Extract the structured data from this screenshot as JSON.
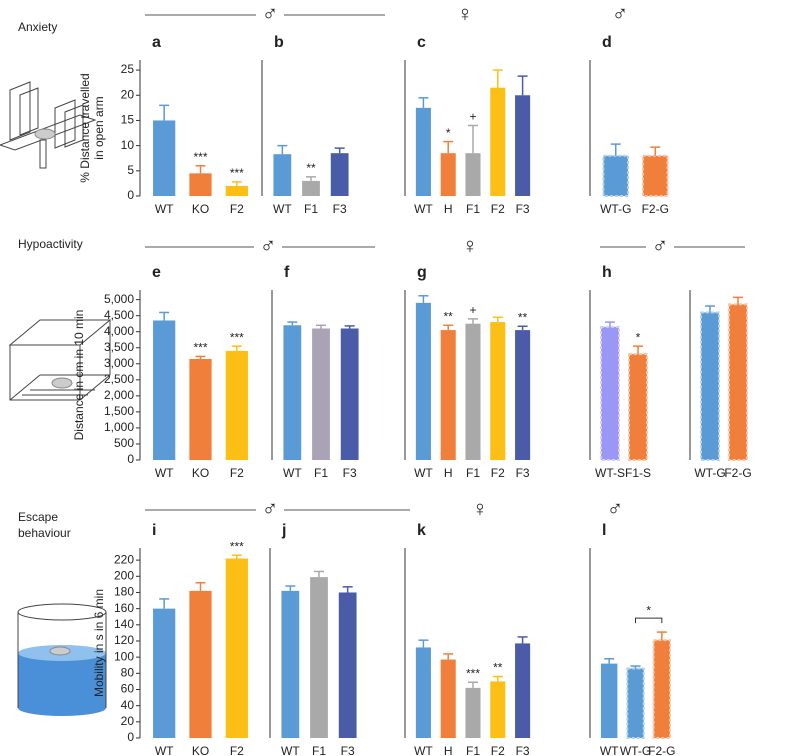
{
  "sections": [
    {
      "label": [
        "Anxiety"
      ],
      "symbols": [
        "♂",
        "♀",
        "♂"
      ]
    },
    {
      "label": [
        "Hypoactivity"
      ],
      "symbols": [
        "♂",
        "♀",
        "♂"
      ]
    },
    {
      "label": [
        "Escape",
        "behaviour"
      ],
      "symbols": [
        "♂",
        "♀",
        "♂"
      ]
    }
  ],
  "chart_data": [
    {
      "type": "bar",
      "title": "a",
      "ylabel": [
        "% Distance travelled",
        "in open arm"
      ],
      "categories": [
        "WT",
        "KO",
        "F2"
      ],
      "values": [
        15,
        4.5,
        2
      ],
      "errors": [
        3,
        1.5,
        0.8
      ],
      "colors": [
        "#5b9bd5",
        "#f07f3c",
        "#fbbf16"
      ],
      "dashed": [
        false,
        false,
        false
      ],
      "annotations": [
        null,
        "***",
        "***"
      ],
      "ylim": [
        0,
        27
      ],
      "yticks": [
        0,
        5,
        10,
        15,
        20,
        25
      ]
    },
    {
      "type": "bar",
      "title": "b",
      "categories": [
        "WT",
        "F1",
        "F3"
      ],
      "values": [
        8.3,
        3,
        8.5
      ],
      "errors": [
        1.7,
        0.8,
        1
      ],
      "colors": [
        "#5b9bd5",
        "#a9a9a9",
        "#4a5ba8"
      ],
      "dashed": [
        false,
        false,
        false
      ],
      "annotations": [
        null,
        "**",
        null
      ],
      "ylim": [
        0,
        27
      ]
    },
    {
      "type": "bar",
      "title": "c",
      "categories": [
        "WT",
        "H",
        "F1",
        "F2",
        "F3"
      ],
      "values": [
        17.5,
        8.5,
        8.5,
        21.5,
        20
      ],
      "errors": [
        2,
        2.3,
        5.5,
        3.5,
        3.8
      ],
      "colors": [
        "#5b9bd5",
        "#f07f3c",
        "#a9a9a9",
        "#fbbf16",
        "#4a5ba8"
      ],
      "dashed": [
        false,
        false,
        false,
        false,
        false
      ],
      "annotations": [
        null,
        "*",
        "+",
        null,
        null
      ],
      "ylim": [
        0,
        27
      ]
    },
    {
      "type": "bar",
      "title": "d",
      "categories": [
        "WT-G",
        "F2-G"
      ],
      "values": [
        8,
        8
      ],
      "errors": [
        2.3,
        1.7
      ],
      "colors": [
        "#5b9bd5",
        "#f07f3c"
      ],
      "dashed": [
        true,
        true
      ],
      "annotations": [
        null,
        null
      ],
      "ylim": [
        0,
        27
      ]
    },
    {
      "type": "bar",
      "title": "e",
      "ylabel": [
        "Distance in cm in 10 min"
      ],
      "categories": [
        "WT",
        "KO",
        "F2"
      ],
      "values": [
        4350,
        3150,
        3400
      ],
      "errors": [
        250,
        80,
        150
      ],
      "colors": [
        "#5b9bd5",
        "#f07f3c",
        "#fbbf16"
      ],
      "dashed": [
        false,
        false,
        false
      ],
      "annotations": [
        null,
        "***",
        "***"
      ],
      "ylim": [
        0,
        5300
      ],
      "yticks": [
        0,
        500,
        {
          "value": 1000,
          "label": "1,000"
        },
        {
          "value": 1500,
          "label": "1,500"
        },
        {
          "value": 2000,
          "label": "2,000"
        },
        {
          "value": 2500,
          "label": "2,500"
        },
        {
          "value": 3000,
          "label": "3,000"
        },
        {
          "value": 3500,
          "label": "3,500"
        },
        {
          "value": 4000,
          "label": "4,000"
        },
        {
          "value": 4500,
          "label": "4,500"
        },
        {
          "value": 5000,
          "label": "5,000"
        }
      ]
    },
    {
      "type": "bar",
      "title": "f",
      "categories": [
        "WT",
        "F1",
        "F3"
      ],
      "values": [
        4200,
        4100,
        4100
      ],
      "errors": [
        100,
        100,
        80
      ],
      "colors": [
        "#5b9bd5",
        "#aaa3b5",
        "#4a5ba8"
      ],
      "dashed": [
        false,
        false,
        false
      ],
      "annotations": [
        null,
        null,
        null
      ],
      "ylim": [
        0,
        5300
      ]
    },
    {
      "type": "bar",
      "title": "g",
      "categories": [
        "WT",
        "H",
        "F1",
        "F2",
        "F3"
      ],
      "values": [
        4900,
        4050,
        4250,
        4300,
        4050
      ],
      "errors": [
        220,
        150,
        150,
        150,
        120
      ],
      "colors": [
        "#5b9bd5",
        "#f07f3c",
        "#a9a9a9",
        "#fbbf16",
        "#4a5ba8"
      ],
      "dashed": [
        false,
        false,
        false,
        false,
        false
      ],
      "annotations": [
        null,
        "**",
        "+",
        null,
        "**"
      ],
      "ylim": [
        0,
        5300
      ]
    },
    {
      "type": "bar",
      "title": "h",
      "categories": [
        "WT-S",
        "F1-S"
      ],
      "values": [
        4150,
        3300
      ],
      "errors": [
        150,
        250
      ],
      "colors": [
        "#9b97f5",
        "#f07f3c"
      ],
      "dashed": [
        true,
        true
      ],
      "annotations": [
        null,
        "*"
      ],
      "ylim": [
        0,
        5300
      ]
    },
    {
      "type": "bar",
      "categories": [
        "WT-G",
        "F2-G"
      ],
      "values": [
        4600,
        4850
      ],
      "errors": [
        200,
        220
      ],
      "colors": [
        "#5b9bd5",
        "#f07f3c"
      ],
      "dashed": [
        true,
        true
      ],
      "annotations": [
        null,
        null
      ],
      "ylim": [
        0,
        5300
      ]
    },
    {
      "type": "bar",
      "title": "i",
      "ylabel": [
        "Mobility in s in 6 min"
      ],
      "categories": [
        "WT",
        "KO",
        "F2"
      ],
      "values": [
        160,
        182,
        222
      ],
      "errors": [
        12,
        10,
        4
      ],
      "colors": [
        "#5b9bd5",
        "#f07f3c",
        "#fbbf16"
      ],
      "dashed": [
        false,
        false,
        false
      ],
      "annotations": [
        null,
        null,
        "***"
      ],
      "ylim": [
        0,
        235
      ],
      "yticks": [
        0,
        20,
        40,
        60,
        80,
        100,
        120,
        140,
        160,
        180,
        200,
        220
      ]
    },
    {
      "type": "bar",
      "title": "j",
      "categories": [
        "WT",
        "F1",
        "F3"
      ],
      "values": [
        182,
        199,
        180
      ],
      "errors": [
        6,
        7,
        7
      ],
      "colors": [
        "#5b9bd5",
        "#a9a9a9",
        "#4a5ba8"
      ],
      "dashed": [
        false,
        false,
        false
      ],
      "annotations": [
        null,
        null,
        null
      ],
      "ylim": [
        0,
        235
      ]
    },
    {
      "type": "bar",
      "title": "k",
      "categories": [
        "WT",
        "H",
        "F1",
        "F2",
        "F3"
      ],
      "values": [
        112,
        97,
        62,
        70,
        117
      ],
      "errors": [
        9,
        7,
        7,
        6,
        8
      ],
      "colors": [
        "#5b9bd5",
        "#f07f3c",
        "#a9a9a9",
        "#fbbf16",
        "#4a5ba8"
      ],
      "dashed": [
        false,
        false,
        false,
        false,
        false
      ],
      "annotations": [
        null,
        null,
        "***",
        "**",
        null
      ],
      "ylim": [
        0,
        235
      ]
    },
    {
      "type": "bar",
      "title": "l",
      "categories": [
        "WT",
        "WT-G",
        "F2-G"
      ],
      "values": [
        92,
        86,
        121
      ],
      "errors": [
        6,
        3,
        10
      ],
      "colors": [
        "#5b9bd5",
        "#5b9bd5",
        "#f07f3c"
      ],
      "dashed": [
        false,
        true,
        true
      ],
      "annotations": [
        null,
        null,
        null
      ],
      "bracket_categories": [
        "WT-G",
        "F2-G"
      ],
      "bracket_label": "*",
      "ylim": [
        0,
        235
      ]
    }
  ]
}
